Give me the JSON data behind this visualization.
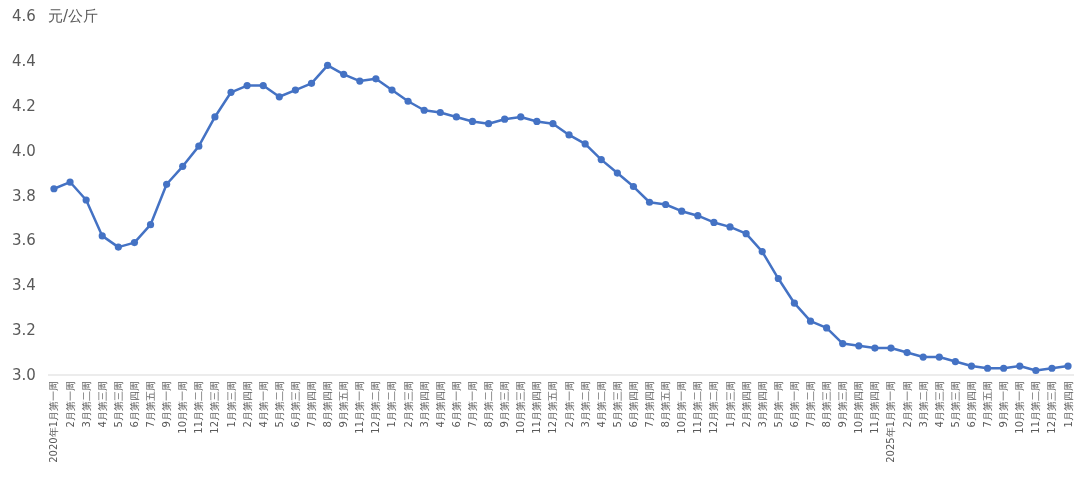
{
  "chart_data": {
    "type": "line",
    "ylabel": "元/公斤",
    "categories": [
      "2020年1月第一周",
      "2月第一周",
      "3月第二周",
      "4月第三周",
      "5月第三周",
      "6月第四周",
      "7月第五周",
      "9月第一周",
      "10月第一周",
      "11月第二周",
      "12月第三周",
      "1月第三周",
      "2月第四周",
      "4月第一周",
      "5月第二周",
      "6月第三周",
      "7月第四周",
      "8月第四周",
      "9月第五周",
      "11月第一周",
      "12月第二周",
      "1月第二周",
      "2月第三周",
      "3月第四周",
      "4月第四周",
      "6月第一周",
      "7月第一周",
      "8月第二周",
      "9月第三周",
      "10月第三周",
      "11月第四周",
      "12月第五周",
      "2月第一周",
      "3月第二周",
      "4月第二周",
      "5月第三周",
      "6月第四周",
      "7月第四周",
      "8月第五周",
      "10月第一周",
      "11月第二周",
      "12月第二周",
      "1月第三周",
      "2月第四周",
      "3月第四周",
      "5月第一周",
      "6月第一周",
      "7月第二周",
      "8月第三周",
      "9月第三周",
      "10月第四周",
      "11月第四周",
      "2025年1月第一周",
      "2月第一周",
      "3月第二周",
      "4月第三周",
      "5月第三周",
      "6月第四周",
      "7月第五周",
      "9月第一周",
      "10月第一周",
      "11月第二周",
      "12月第三周",
      "1月第四周"
    ],
    "series": [
      {
        "color": "#4472c4",
        "values": [
          3.83,
          3.86,
          3.78,
          3.62,
          3.57,
          3.59,
          3.67,
          3.85,
          3.93,
          4.02,
          4.15,
          4.26,
          4.29,
          4.29,
          4.24,
          4.27,
          4.3,
          4.38,
          4.34,
          4.31,
          4.32,
          4.27,
          4.22,
          4.18,
          4.17,
          4.15,
          4.13,
          4.12,
          4.14,
          4.15,
          4.13,
          4.12,
          4.07,
          4.03,
          3.96,
          3.9,
          3.84,
          3.77,
          3.76,
          3.73,
          3.71,
          3.68,
          3.66,
          3.63,
          3.55,
          3.43,
          3.32,
          3.24,
          3.21,
          3.14,
          3.13,
          3.12,
          3.12,
          3.1,
          3.08,
          3.08,
          3.06,
          3.04,
          3.03,
          3.03,
          3.04,
          3.02,
          3.03,
          3.04
        ]
      }
    ],
    "ylim": [
      3.0,
      4.6
    ],
    "yticks": [
      {
        "value": 3,
        "label": "3.0"
      },
      {
        "value": 3.2,
        "label": "3.2"
      },
      {
        "value": 3.4,
        "label": "3.4"
      },
      {
        "value": 3.6,
        "label": "3.6"
      },
      {
        "value": 3.8,
        "label": "3.8"
      },
      {
        "value": 4,
        "label": "4.0"
      },
      {
        "value": 4.2,
        "label": "4.2"
      },
      {
        "value": 4.4,
        "label": "4.4"
      },
      {
        "value": 4.6,
        "label": "4.6"
      }
    ],
    "marker": "circle",
    "line_style": "solid",
    "grid": false
  }
}
